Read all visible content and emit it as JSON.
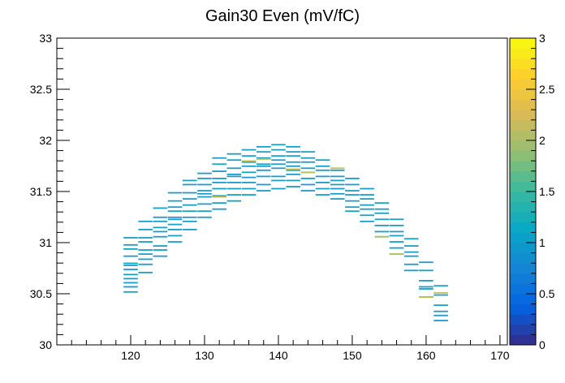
{
  "chart_data": {
    "type": "heatmap",
    "title": "Gain30 Even (mV/fC)",
    "xlabel": "",
    "ylabel": "",
    "xlim": [
      110,
      171
    ],
    "ylim": [
      30,
      33
    ],
    "x_ticks": [
      "120",
      "130",
      "140",
      "150",
      "160",
      "170"
    ],
    "y_ticks": [
      "30",
      "30.5",
      "31",
      "31.5",
      "32",
      "32.5",
      "33"
    ],
    "colorbar": {
      "zlim": [
        0,
        3
      ],
      "ticks": [
        "0",
        "0.5",
        "1",
        "1.5",
        "2",
        "2.5",
        "3"
      ],
      "palette": [
        "#352a87",
        "#0363e1",
        "#1485d4",
        "#06a7c6",
        "#38b99e",
        "#92bf73",
        "#d9ba56",
        "#fcce2e",
        "#f9fb0e"
      ]
    },
    "grid": false,
    "x_bin_width": 2,
    "y_bin_height": 0.01,
    "counts_note": "most bins have count 1; a few have count 2",
    "columns": [
      {
        "x": 120,
        "values": [
          30.51,
          30.56,
          30.6,
          30.64,
          30.68,
          30.73,
          30.77,
          30.79,
          30.86,
          30.93,
          30.97,
          31.04
        ]
      },
      {
        "x": 122,
        "values": [
          30.7,
          30.78,
          30.83,
          30.88,
          30.92,
          31.0,
          31.04,
          31.12,
          31.2
        ]
      },
      {
        "x": 124,
        "values": [
          30.86,
          30.92,
          30.96,
          31.05,
          31.1,
          31.14,
          31.2,
          31.24,
          31.33
        ]
      },
      {
        "x": 126,
        "values": [
          31.0,
          31.06,
          31.12,
          31.17,
          31.22,
          31.24,
          31.3,
          31.34,
          31.4,
          31.48
        ]
      },
      {
        "x": 128,
        "values": [
          31.12,
          31.2,
          31.24,
          31.3,
          31.36,
          31.42,
          31.48,
          31.56,
          31.6
        ]
      },
      {
        "x": 130,
        "values": [
          31.24,
          31.3,
          31.37,
          31.44,
          31.47,
          31.5,
          31.56,
          31.62,
          31.67
        ]
      },
      {
        "x": 132,
        "values": [
          31.32,
          31.38,
          31.45,
          31.52,
          31.58,
          31.62,
          31.69,
          31.76,
          31.82
        ]
      },
      {
        "x": 134,
        "values": [
          31.4,
          31.46,
          31.52,
          31.58,
          31.64,
          31.66,
          31.72,
          31.8,
          31.86
        ]
      },
      {
        "x": 136,
        "values": [
          31.46,
          31.52,
          31.58,
          31.63,
          31.68,
          31.74,
          31.78,
          31.84,
          31.9
        ]
      },
      {
        "x": 138,
        "values": [
          31.5,
          31.56,
          31.64,
          31.7,
          31.74,
          31.76,
          31.82,
          31.88,
          31.93
        ]
      },
      {
        "x": 140,
        "values": [
          31.52,
          31.6,
          31.64,
          31.72,
          31.76,
          31.8,
          31.84,
          31.9,
          31.95
        ]
      },
      {
        "x": 142,
        "values": [
          31.54,
          31.6,
          31.66,
          31.7,
          31.74,
          31.78,
          31.84,
          31.88,
          31.93
        ]
      },
      {
        "x": 144,
        "values": [
          31.5,
          31.56,
          31.62,
          31.68,
          31.72,
          31.78,
          31.82,
          31.88
        ]
      },
      {
        "x": 146,
        "values": [
          31.46,
          31.52,
          31.58,
          31.64,
          31.7,
          31.74,
          31.8
        ]
      },
      {
        "x": 148,
        "values": [
          31.42,
          31.47,
          31.52,
          31.56,
          31.6,
          31.64,
          31.7
        ]
      },
      {
        "x": 150,
        "values": [
          31.3,
          31.34,
          31.4,
          31.46,
          31.5,
          31.56,
          31.62
        ]
      },
      {
        "x": 152,
        "values": [
          31.2,
          31.26,
          31.32,
          31.36,
          31.42,
          31.46,
          31.52
        ]
      },
      {
        "x": 154,
        "values": [
          31.05,
          31.1,
          31.16,
          31.22,
          31.28,
          31.32,
          31.38
        ]
      },
      {
        "x": 156,
        "values": [
          30.88,
          30.94,
          31.0,
          31.06,
          31.1,
          31.16,
          31.22
        ]
      },
      {
        "x": 158,
        "values": [
          30.72,
          30.78,
          30.86,
          30.9,
          30.96,
          31.03
        ]
      },
      {
        "x": 160,
        "values": [
          30.46,
          30.54,
          30.56,
          30.62,
          30.72,
          30.8
        ]
      },
      {
        "x": 162,
        "values": [
          30.23,
          30.28,
          30.32,
          30.38,
          30.48,
          30.57
        ]
      }
    ],
    "count2_bins": [
      [
        132,
        31.44
      ],
      [
        136,
        31.79
      ],
      [
        138,
        31.81
      ],
      [
        142,
        31.71
      ],
      [
        144,
        31.68
      ],
      [
        148,
        31.72
      ],
      [
        154,
        31.05
      ],
      [
        156,
        30.88
      ],
      [
        160,
        30.46
      ],
      [
        162,
        30.5
      ]
    ]
  }
}
